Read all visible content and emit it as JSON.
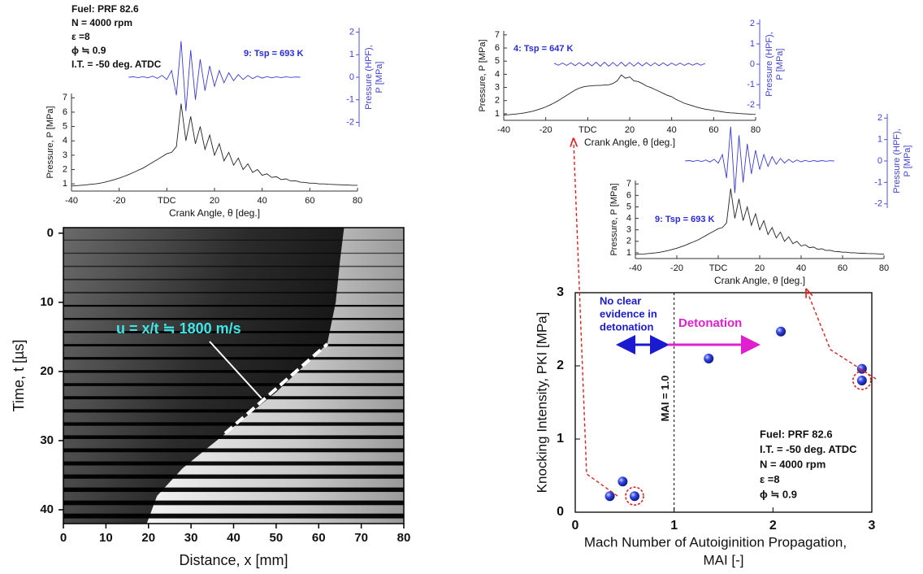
{
  "chart_data": [
    {
      "type": "line",
      "annotations": [
        "Fuel:  PRF 82.6",
        "N = 4000 rpm",
        "ε =8",
        "ϕ ≒ 0.9",
        "I.T. = -50 deg. ATDC"
      ],
      "tag": "9: Tsp = 693 K",
      "xlabel": "Crank Angle, θ [deg.]",
      "ylabel": "Pressure, P [MPa]",
      "y2label": [
        "Pressure (HPF),",
        "P [MPa]"
      ],
      "xlim": [
        -40,
        80
      ],
      "ylim": [
        0.5,
        7.3
      ],
      "y2lim": [
        -2.2,
        2.2
      ],
      "xticks": [
        -40,
        -20,
        {
          "value": 0,
          "label": "TDC"
        },
        20,
        40,
        60,
        80
      ],
      "yticks": [
        1,
        2,
        3,
        4,
        5,
        6,
        7
      ],
      "y2ticks": [
        -2,
        -1,
        0,
        1,
        2
      ],
      "x": [
        -40,
        -38,
        -36,
        -34,
        -32,
        -30,
        -28,
        -26,
        -24,
        -22,
        -20,
        -18,
        -16,
        -14,
        -12,
        -10,
        -8,
        -6,
        -4,
        -2,
        0,
        2,
        4,
        6,
        8,
        10,
        12,
        14,
        16,
        18,
        20,
        22,
        24,
        26,
        28,
        30,
        32,
        34,
        36,
        38,
        40,
        42,
        44,
        46,
        48,
        50,
        52,
        54,
        56,
        58,
        60,
        62,
        64,
        66,
        68,
        70,
        72,
        74,
        76,
        78,
        80
      ],
      "series": [
        {
          "color": "#222222",
          "values": [
            0.85,
            0.88,
            0.9,
            0.93,
            0.97,
            1.0,
            1.05,
            1.12,
            1.2,
            1.3,
            1.4,
            1.52,
            1.65,
            1.8,
            1.95,
            2.1,
            2.3,
            2.5,
            2.7,
            2.9,
            3.1,
            3.2,
            3.6,
            6.6,
            4.0,
            5.7,
            3.8,
            5.0,
            3.4,
            4.4,
            3.0,
            3.8,
            2.6,
            3.2,
            2.3,
            2.8,
            2.0,
            2.4,
            1.8,
            2.0,
            1.6,
            1.7,
            1.45,
            1.5,
            1.3,
            1.35,
            1.2,
            1.22,
            1.12,
            1.1,
            1.05,
            1.05,
            1.0,
            1.0,
            0.97,
            0.96,
            0.94,
            0.93,
            0.92,
            0.9,
            0.9
          ]
        },
        {
          "color": "#3b3bd6",
          "axis": "y2",
          "values": [
            null,
            null,
            null,
            null,
            null,
            null,
            null,
            null,
            null,
            null,
            null,
            null,
            0,
            0.02,
            -0.02,
            0.03,
            -0.03,
            0.05,
            -0.05,
            0.08,
            -0.1,
            0.3,
            -0.8,
            1.6,
            -1.5,
            1.2,
            -1.0,
            0.8,
            -0.6,
            0.5,
            -0.4,
            0.3,
            -0.25,
            0.2,
            -0.15,
            0.12,
            -0.1,
            0.08,
            -0.06,
            0.05,
            -0.04,
            0.03,
            -0.03,
            0.02,
            -0.02,
            0.02,
            -0.01,
            0.01,
            0,
            null,
            null,
            null,
            null,
            null,
            null,
            null,
            null,
            null,
            null,
            null,
            null
          ]
        }
      ]
    },
    {
      "type": "image",
      "annotation": "u = x/t ≒ 1800 m/s",
      "xlabel": "Distance, x [mm]",
      "ylabel": "Time, t [µs]",
      "xlim": [
        0,
        80
      ],
      "ylim": [
        -0.8,
        42
      ],
      "y_inverted": true,
      "xticks": [
        0,
        10,
        20,
        30,
        40,
        50,
        60,
        70,
        80
      ],
      "yticks": [
        0,
        10,
        20,
        30,
        40
      ]
    },
    {
      "type": "line",
      "tag": "4: Tsp = 647 K",
      "xlabel": "Crank Angle, θ [deg.]",
      "ylabel": "Pressure, P [MPa]",
      "y2label": [
        "Pressure (HPF),",
        "P [MPa]"
      ],
      "xlim": [
        -40,
        80
      ],
      "ylim": [
        0.5,
        7.3
      ],
      "y2lim": [
        -2.2,
        2.2
      ],
      "xticks": [
        -40,
        -20,
        {
          "value": 0,
          "label": "TDC"
        },
        20,
        40,
        60,
        80
      ],
      "yticks": [
        1,
        2,
        3,
        4,
        5,
        6,
        7
      ],
      "y2ticks": [
        -2,
        -1,
        0,
        1,
        2
      ],
      "x": [
        -40,
        -38,
        -36,
        -34,
        -32,
        -30,
        -28,
        -26,
        -24,
        -22,
        -20,
        -18,
        -16,
        -14,
        -12,
        -10,
        -8,
        -6,
        -4,
        -2,
        0,
        2,
        4,
        6,
        8,
        10,
        12,
        14,
        16,
        18,
        20,
        22,
        24,
        26,
        28,
        30,
        32,
        34,
        36,
        38,
        40,
        42,
        44,
        46,
        48,
        50,
        52,
        54,
        56,
        58,
        60,
        62,
        64,
        66,
        68,
        70,
        72,
        74,
        76,
        78,
        80
      ],
      "series": [
        {
          "color": "#222222",
          "values": [
            0.9,
            0.92,
            0.95,
            0.98,
            1.02,
            1.07,
            1.13,
            1.2,
            1.3,
            1.4,
            1.52,
            1.66,
            1.82,
            2.0,
            2.2,
            2.4,
            2.6,
            2.8,
            2.95,
            3.05,
            3.1,
            3.12,
            3.15,
            3.15,
            3.18,
            3.2,
            3.3,
            3.5,
            3.95,
            3.7,
            3.8,
            3.5,
            3.45,
            3.3,
            3.1,
            3.0,
            2.85,
            2.7,
            2.55,
            2.4,
            2.3,
            2.1,
            1.95,
            1.8,
            1.7,
            1.6,
            1.5,
            1.42,
            1.35,
            1.3,
            1.25,
            1.2,
            1.15,
            1.1,
            1.07,
            1.05,
            1.02,
            1.0,
            0.98,
            0.96,
            0.95
          ]
        },
        {
          "color": "#3b3bd6",
          "axis": "y2",
          "values": [
            null,
            null,
            null,
            null,
            null,
            null,
            null,
            null,
            null,
            null,
            null,
            null,
            0.05,
            -0.05,
            0.06,
            -0.06,
            0.07,
            -0.07,
            0.08,
            -0.08,
            0.08,
            -0.08,
            0.1,
            -0.1,
            0.1,
            -0.1,
            0.09,
            -0.09,
            0.1,
            -0.1,
            0.09,
            -0.09,
            0.08,
            -0.08,
            0.08,
            -0.08,
            0.07,
            -0.07,
            0.07,
            -0.07,
            0.06,
            -0.06,
            0.06,
            -0.06,
            0.05,
            -0.05,
            0.05,
            -0.05,
            0.04,
            null,
            null,
            null,
            null,
            null,
            null,
            null,
            null,
            null,
            null,
            null,
            null
          ]
        }
      ]
    },
    {
      "type": "line",
      "tag": "9: Tsp = 693 K",
      "xlabel": "Crank Angle, θ [deg.]",
      "ylabel": "Pressure, P [MPa]",
      "y2label": [
        "Pressure (HPF),",
        "P [MPa]"
      ],
      "xlim": [
        -40,
        80
      ],
      "ylim": [
        0.5,
        7.3
      ],
      "y2lim": [
        -2.2,
        2.2
      ],
      "xticks": [
        -40,
        -20,
        {
          "value": 0,
          "label": "TDC"
        },
        20,
        40,
        60,
        80
      ],
      "yticks": [
        1,
        2,
        3,
        4,
        5,
        6,
        7
      ],
      "y2ticks": [
        -2,
        -1,
        0,
        1,
        2
      ],
      "x": [
        -40,
        -38,
        -36,
        -34,
        -32,
        -30,
        -28,
        -26,
        -24,
        -22,
        -20,
        -18,
        -16,
        -14,
        -12,
        -10,
        -8,
        -6,
        -4,
        -2,
        0,
        2,
        4,
        6,
        8,
        10,
        12,
        14,
        16,
        18,
        20,
        22,
        24,
        26,
        28,
        30,
        32,
        34,
        36,
        38,
        40,
        42,
        44,
        46,
        48,
        50,
        52,
        54,
        56,
        58,
        60,
        62,
        64,
        66,
        68,
        70,
        72,
        74,
        76,
        78,
        80
      ],
      "series": [
        {
          "color": "#222222",
          "values": [
            0.85,
            0.88,
            0.9,
            0.93,
            0.97,
            1.0,
            1.05,
            1.12,
            1.2,
            1.3,
            1.4,
            1.52,
            1.65,
            1.8,
            1.95,
            2.1,
            2.3,
            2.5,
            2.7,
            2.9,
            3.1,
            3.2,
            3.6,
            6.6,
            4.0,
            5.7,
            3.8,
            5.0,
            3.4,
            4.4,
            3.0,
            3.8,
            2.6,
            3.2,
            2.3,
            2.8,
            2.0,
            2.4,
            1.8,
            2.0,
            1.6,
            1.7,
            1.45,
            1.5,
            1.3,
            1.35,
            1.2,
            1.22,
            1.12,
            1.1,
            1.05,
            1.05,
            1.0,
            1.0,
            0.97,
            0.96,
            0.94,
            0.93,
            0.92,
            0.9,
            0.9
          ]
        },
        {
          "color": "#3b3bd6",
          "axis": "y2",
          "values": [
            null,
            null,
            null,
            null,
            null,
            null,
            null,
            null,
            null,
            null,
            null,
            null,
            0,
            0.02,
            -0.02,
            0.03,
            -0.03,
            0.05,
            -0.05,
            0.08,
            -0.1,
            0.3,
            -0.8,
            1.6,
            -1.5,
            1.2,
            -1.0,
            0.8,
            -0.6,
            0.5,
            -0.4,
            0.3,
            -0.25,
            0.2,
            -0.15,
            0.12,
            -0.1,
            0.08,
            -0.06,
            0.05,
            -0.04,
            0.03,
            -0.03,
            0.02,
            -0.02,
            0.02,
            -0.01,
            0.01,
            0,
            null,
            null,
            null,
            null,
            null,
            null,
            null,
            null,
            null,
            null,
            null,
            null
          ]
        }
      ]
    },
    {
      "type": "scatter",
      "xlabel": [
        "Mach Number of Autoiginition Propagation,",
        "MAI [-]"
      ],
      "ylabel": "Knocking Intensity, PKI [MPa]",
      "xlim": [
        0,
        3
      ],
      "ylim": [
        0,
        3
      ],
      "xticks": [
        0,
        1,
        2,
        3
      ],
      "yticks": [
        0,
        1,
        2,
        3
      ],
      "x": [
        0.35,
        0.48,
        0.6,
        1.35,
        2.08,
        2.9,
        2.9
      ],
      "values": [
        0.22,
        0.42,
        0.22,
        2.1,
        2.47,
        1.96,
        1.8
      ],
      "color": "#2a3bd8",
      "vline": 1,
      "vline_label": "MAI = 1.0",
      "no_evidence": [
        "No clear",
        "evidence in",
        "detonation"
      ],
      "detonation": "Detonation",
      "conditions": [
        "Fuel: PRF 82.6",
        "I.T. = -50 deg. ATDC",
        "N = 4000 rpm",
        "ε =8",
        "ϕ ≒ 0.9"
      ]
    }
  ]
}
